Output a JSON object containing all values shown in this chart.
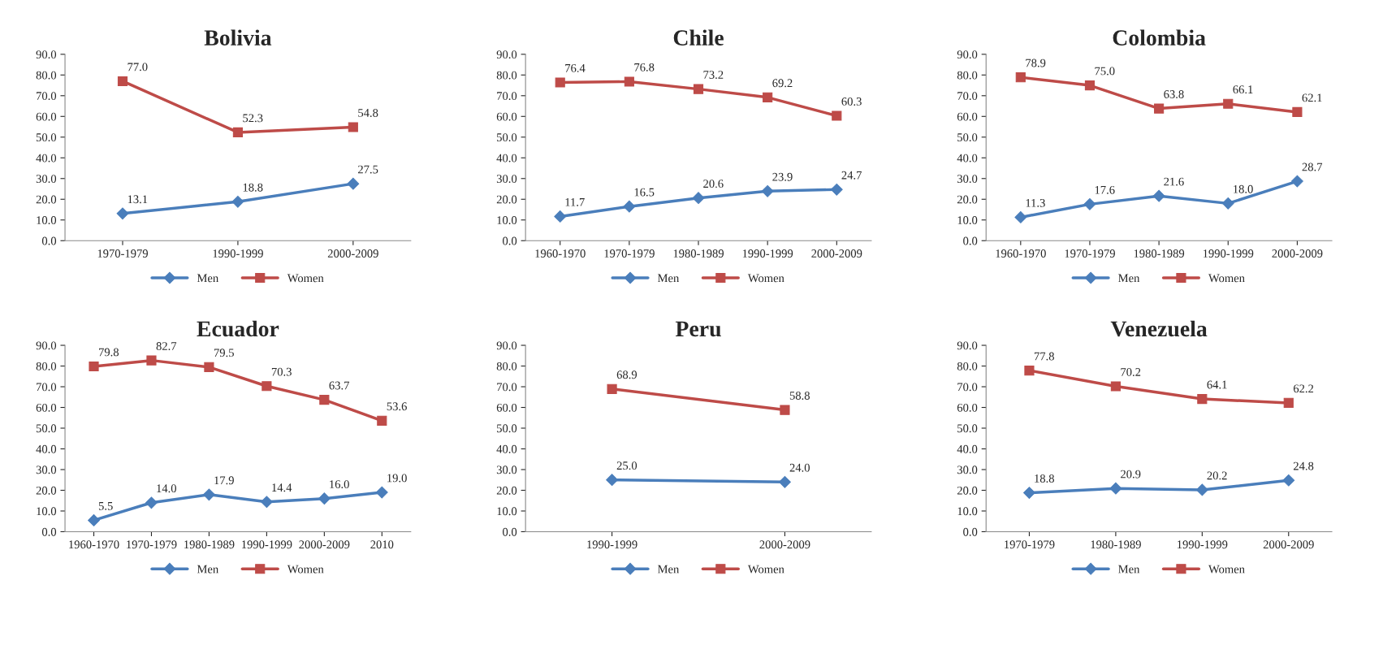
{
  "chart_data": [
    {
      "type": "line",
      "title": "Bolivia",
      "categories": [
        "1970-1979",
        "1990-1999",
        "2000-2009"
      ],
      "ylim": [
        0,
        90
      ],
      "yticks": [
        {
          "value": 0,
          "label": "0.0"
        },
        {
          "value": 10,
          "label": "10.0"
        },
        {
          "value": 20,
          "label": "20.0"
        },
        {
          "value": 30,
          "label": "30.0"
        },
        {
          "value": 40,
          "label": "40.0"
        },
        {
          "value": 50,
          "label": "50.0"
        },
        {
          "value": 60,
          "label": "60.0"
        },
        {
          "value": 70,
          "label": "70.0"
        },
        {
          "value": 80,
          "label": "80.0"
        },
        {
          "value": 90,
          "label": "90.0"
        }
      ],
      "grid": false,
      "legend": "bottom",
      "series": [
        {
          "name": "Men",
          "color": "#4a7ebb",
          "marker": "diamond",
          "values": [
            13.1,
            18.8,
            27.5
          ],
          "value_labels": [
            "13.1",
            "18.8",
            "27.5"
          ]
        },
        {
          "name": "Women",
          "color": "#be4b48",
          "marker": "square",
          "values": [
            77.0,
            52.3,
            54.8
          ],
          "value_labels": [
            "77.0",
            "52.3",
            "54.8"
          ]
        }
      ]
    },
    {
      "type": "line",
      "title": "Chile",
      "categories": [
        "1960-1970",
        "1970-1979",
        "1980-1989",
        "1990-1999",
        "2000-2009"
      ],
      "ylim": [
        0,
        90
      ],
      "yticks": [
        {
          "value": 0,
          "label": "0.0"
        },
        {
          "value": 10,
          "label": "10.0"
        },
        {
          "value": 20,
          "label": "20.0"
        },
        {
          "value": 30,
          "label": "30.0"
        },
        {
          "value": 40,
          "label": "40.0"
        },
        {
          "value": 50,
          "label": "50.0"
        },
        {
          "value": 60,
          "label": "60.0"
        },
        {
          "value": 70,
          "label": "70.0"
        },
        {
          "value": 80,
          "label": "80.0"
        },
        {
          "value": 90,
          "label": "90.0"
        }
      ],
      "grid": false,
      "legend": "bottom",
      "series": [
        {
          "name": "Men",
          "color": "#4a7ebb",
          "marker": "diamond",
          "values": [
            11.7,
            16.5,
            20.6,
            23.9,
            24.7
          ],
          "value_labels": [
            "11.7",
            "16.5",
            "20.6",
            "23.9",
            "24.7"
          ]
        },
        {
          "name": "Women",
          "color": "#be4b48",
          "marker": "square",
          "values": [
            76.4,
            76.8,
            73.2,
            69.2,
            60.3
          ],
          "value_labels": [
            "76.4",
            "76.8",
            "73.2",
            "69.2",
            "60.3"
          ]
        }
      ]
    },
    {
      "type": "line",
      "title": "Colombia",
      "categories": [
        "1960-1970",
        "1970-1979",
        "1980-1989",
        "1990-1999",
        "2000-2009"
      ],
      "ylim": [
        0,
        90
      ],
      "yticks": [
        {
          "value": 0,
          "label": "0.0"
        },
        {
          "value": 10,
          "label": "10.0"
        },
        {
          "value": 20,
          "label": "20.0"
        },
        {
          "value": 30,
          "label": "30.0"
        },
        {
          "value": 40,
          "label": "40.0"
        },
        {
          "value": 50,
          "label": "50.0"
        },
        {
          "value": 60,
          "label": "60.0"
        },
        {
          "value": 70,
          "label": "70.0"
        },
        {
          "value": 80,
          "label": "80.0"
        },
        {
          "value": 90,
          "label": "90.0"
        }
      ],
      "grid": false,
      "legend": "bottom",
      "series": [
        {
          "name": "Men",
          "color": "#4a7ebb",
          "marker": "diamond",
          "values": [
            11.3,
            17.6,
            21.6,
            18.0,
            28.7
          ],
          "value_labels": [
            "11.3",
            "17.6",
            "21.6",
            "18.0",
            "28.7"
          ]
        },
        {
          "name": "Women",
          "color": "#be4b48",
          "marker": "square",
          "values": [
            78.9,
            75.0,
            63.8,
            66.1,
            62.1
          ],
          "value_labels": [
            "78.9",
            "75.0",
            "63.8",
            "66.1",
            "62.1"
          ]
        }
      ]
    },
    {
      "type": "line",
      "title": "Ecuador",
      "categories": [
        "1960-1970",
        "1970-1979",
        "1980-1989",
        "1990-1999",
        "2000-2009",
        "2010"
      ],
      "ylim": [
        0,
        90
      ],
      "yticks": [
        {
          "value": 0,
          "label": "0.0"
        },
        {
          "value": 10,
          "label": "10.0"
        },
        {
          "value": 20,
          "label": "20.0"
        },
        {
          "value": 30,
          "label": "30.0"
        },
        {
          "value": 40,
          "label": "40.0"
        },
        {
          "value": 50,
          "label": "50.0"
        },
        {
          "value": 60,
          "label": "60.0"
        },
        {
          "value": 70,
          "label": "70.0"
        },
        {
          "value": 80,
          "label": "80.0"
        },
        {
          "value": 90,
          "label": "90.0"
        }
      ],
      "grid": false,
      "legend": "bottom",
      "series": [
        {
          "name": "Men",
          "color": "#4a7ebb",
          "marker": "diamond",
          "values": [
            5.5,
            14.0,
            17.9,
            14.4,
            16.0,
            19.0
          ],
          "value_labels": [
            "5.5",
            "14.0",
            "17.9",
            "14.4",
            "16.0",
            "19.0"
          ]
        },
        {
          "name": "Women",
          "color": "#be4b48",
          "marker": "square",
          "values": [
            79.8,
            82.7,
            79.5,
            70.3,
            63.7,
            53.6
          ],
          "value_labels": [
            "79.8",
            "82.7",
            "79.5",
            "70.3",
            "63.7",
            "53.6"
          ]
        }
      ]
    },
    {
      "type": "line",
      "title": "Peru",
      "categories": [
        "1990-1999",
        "2000-2009"
      ],
      "ylim": [
        0,
        90
      ],
      "yticks": [
        {
          "value": 0,
          "label": "0.0"
        },
        {
          "value": 10,
          "label": "10.0"
        },
        {
          "value": 20,
          "label": "20.0"
        },
        {
          "value": 30,
          "label": "30.0"
        },
        {
          "value": 40,
          "label": "40.0"
        },
        {
          "value": 50,
          "label": "50.0"
        },
        {
          "value": 60,
          "label": "60.0"
        },
        {
          "value": 70,
          "label": "70.0"
        },
        {
          "value": 80,
          "label": "80.0"
        },
        {
          "value": 90,
          "label": "90.0"
        }
      ],
      "grid": false,
      "legend": "bottom",
      "series": [
        {
          "name": "Men",
          "color": "#4a7ebb",
          "marker": "diamond",
          "values": [
            25.0,
            24.0
          ],
          "value_labels": [
            "25.0",
            "24.0"
          ]
        },
        {
          "name": "Women",
          "color": "#be4b48",
          "marker": "square",
          "values": [
            68.9,
            58.8
          ],
          "value_labels": [
            "68.9",
            "58.8"
          ]
        }
      ]
    },
    {
      "type": "line",
      "title": "Venezuela",
      "categories": [
        "1970-1979",
        "1980-1989",
        "1990-1999",
        "2000-2009"
      ],
      "ylim": [
        0,
        90
      ],
      "yticks": [
        {
          "value": 0,
          "label": "0.0"
        },
        {
          "value": 10,
          "label": "10.0"
        },
        {
          "value": 20,
          "label": "20.0"
        },
        {
          "value": 30,
          "label": "30.0"
        },
        {
          "value": 40,
          "label": "40.0"
        },
        {
          "value": 50,
          "label": "50.0"
        },
        {
          "value": 60,
          "label": "60.0"
        },
        {
          "value": 70,
          "label": "70.0"
        },
        {
          "value": 80,
          "label": "80.0"
        },
        {
          "value": 90,
          "label": "90.0"
        }
      ],
      "grid": false,
      "legend": "bottom",
      "series": [
        {
          "name": "Men",
          "color": "#4a7ebb",
          "marker": "diamond",
          "values": [
            18.8,
            20.9,
            20.2,
            24.8
          ],
          "value_labels": [
            "18.8",
            "20.9",
            "20.2",
            "24.8"
          ]
        },
        {
          "name": "Women",
          "color": "#be4b48",
          "marker": "square",
          "values": [
            77.8,
            70.2,
            64.1,
            62.2
          ],
          "value_labels": [
            "77.8",
            "70.2",
            "64.1",
            "62.2"
          ]
        }
      ]
    }
  ]
}
